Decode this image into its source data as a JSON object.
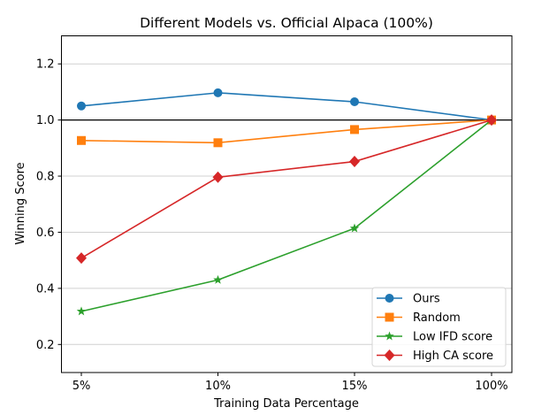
{
  "chart_data": {
    "type": "line",
    "title": "Different Models vs. Official Alpaca (100%)",
    "xlabel": "Training Data Percentage",
    "ylabel": "Winning Score",
    "categories": [
      "5%",
      "10%",
      "15%",
      "100%"
    ],
    "ylim": [
      0.1,
      1.3
    ],
    "yticks": [
      0.2,
      0.4,
      0.6,
      0.8,
      1.0,
      1.2
    ],
    "ytick_labels": [
      "0.2",
      "0.4",
      "0.6",
      "0.8",
      "1.0",
      "1.2"
    ],
    "grid": "horizontal",
    "reference_line": 1.0,
    "legend_position": "lower-right",
    "series": [
      {
        "name": "Ours",
        "values": [
          1.05,
          1.097,
          1.065,
          1.0
        ],
        "color": "#1f77b4",
        "marker": "circle"
      },
      {
        "name": "Random",
        "values": [
          0.927,
          0.919,
          0.966,
          1.0
        ],
        "color": "#ff7f0e",
        "marker": "square"
      },
      {
        "name": "Low IFD score",
        "values": [
          0.318,
          0.43,
          0.614,
          1.0
        ],
        "color": "#2ca02c",
        "marker": "star"
      },
      {
        "name": "High CA score",
        "values": [
          0.508,
          0.796,
          0.852,
          1.0
        ],
        "color": "#d62728",
        "marker": "diamond"
      }
    ]
  }
}
